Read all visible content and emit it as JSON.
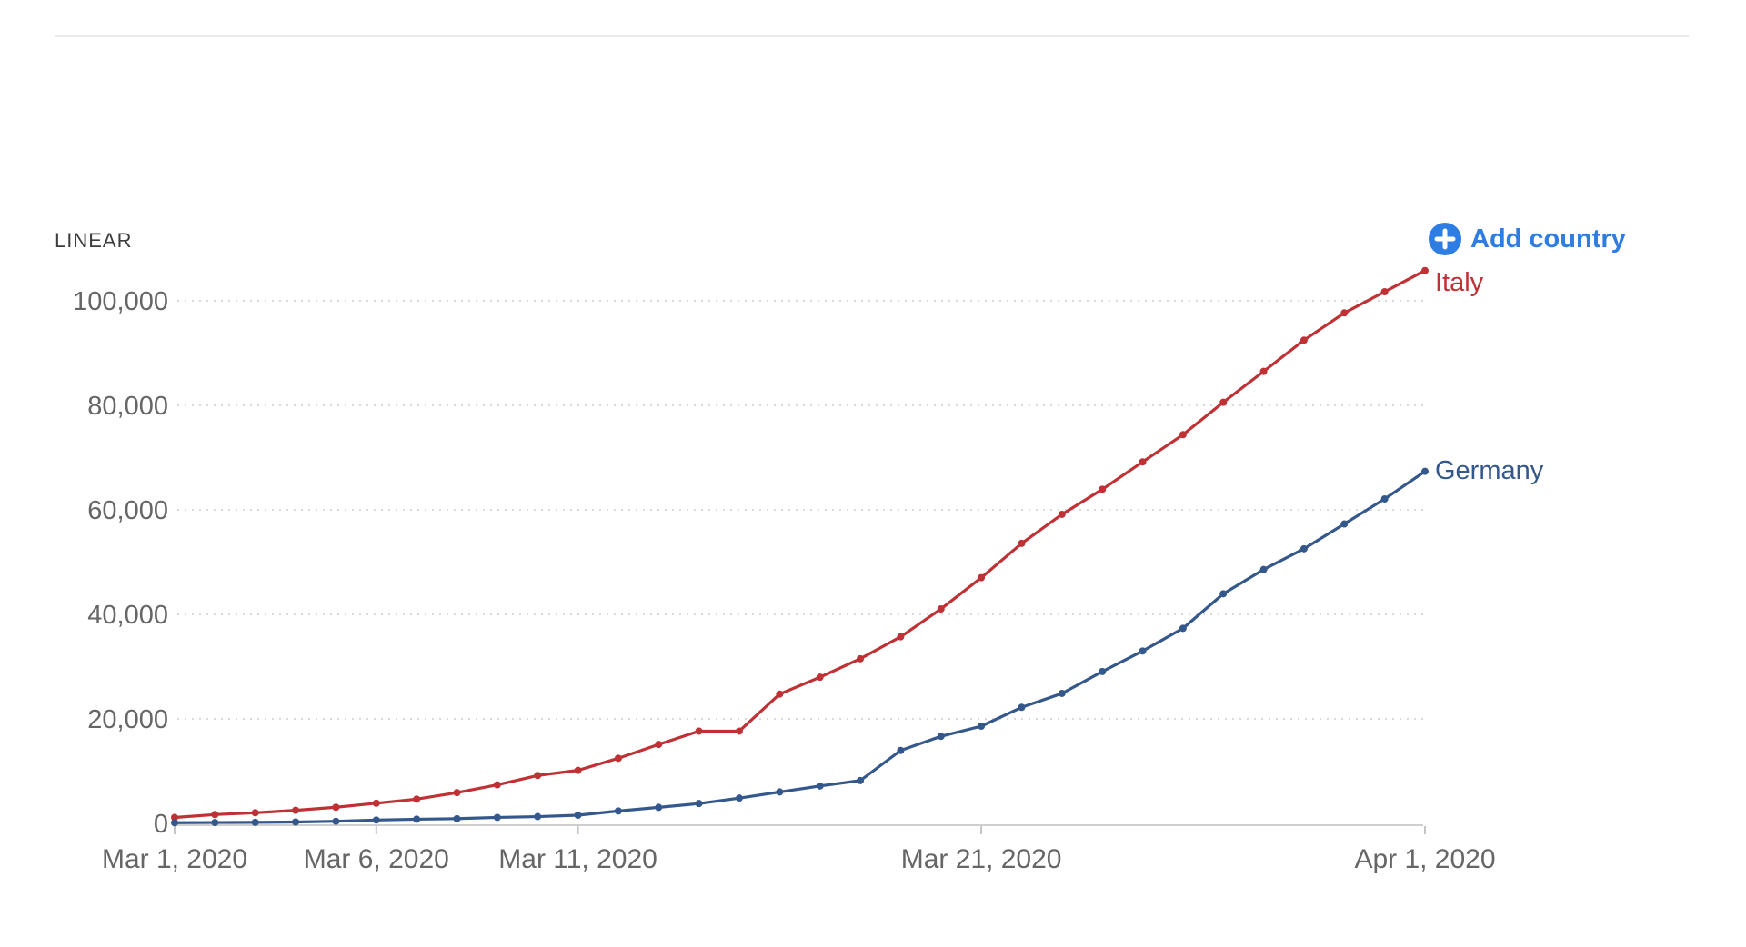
{
  "controls": {
    "scale_label": "LINEAR",
    "add_country_label": "Add country",
    "add_country_color": "#2d7de2",
    "plus_icon": "plus-icon"
  },
  "chart_data": {
    "type": "line",
    "title": "",
    "xlabel": "",
    "ylabel": "",
    "x_start": "Mar 1, 2020",
    "x_end": "Apr 1, 2020",
    "days_span": 31,
    "ylim": [
      0,
      110000
    ],
    "grid": "dotted horizontal",
    "legend_position": "line-end-labels",
    "x_ticks": [
      {
        "label": "Mar 1, 2020",
        "day": 0
      },
      {
        "label": "Mar 6, 2020",
        "day": 5
      },
      {
        "label": "Mar 11, 2020",
        "day": 10
      },
      {
        "label": "Mar 21, 2020",
        "day": 20
      },
      {
        "label": "Apr 1, 2020",
        "day": 31
      }
    ],
    "y_ticks": [
      {
        "label": "0",
        "value": 0
      },
      {
        "label": "20,000",
        "value": 20000
      },
      {
        "label": "40,000",
        "value": 40000
      },
      {
        "label": "60,000",
        "value": 60000
      },
      {
        "label": "80,000",
        "value": 80000
      },
      {
        "label": "100,000",
        "value": 100000
      }
    ],
    "series": [
      {
        "name": "Italy",
        "color": "#bf3134",
        "values": [
          1128,
          1689,
          2036,
          2502,
          3089,
          3858,
          4636,
          5883,
          7375,
          9172,
          10149,
          12462,
          15113,
          17660,
          17660,
          24747,
          27980,
          31506,
          35713,
          41035,
          47021,
          53578,
          59138,
          63927,
          69176,
          74386,
          80589,
          86498,
          92472,
          97689,
          101739,
          105792
        ]
      },
      {
        "name": "Germany",
        "color": "#35588c",
        "values": [
          130,
          159,
          196,
          262,
          400,
          639,
          795,
          902,
          1139,
          1296,
          1567,
          2369,
          3062,
          3795,
          4838,
          6012,
          7156,
          8198,
          13957,
          16662,
          18610,
          22213,
          24873,
          29056,
          32986,
          37323,
          43938,
          48582,
          52547,
          57298,
          62095,
          67366
        ]
      }
    ]
  }
}
